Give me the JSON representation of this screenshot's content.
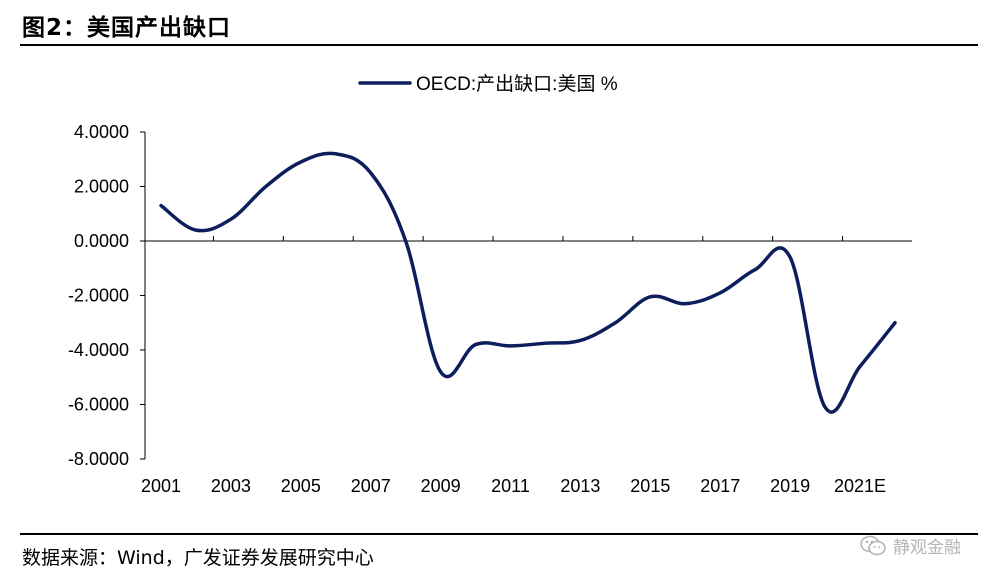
{
  "header": {
    "title": "图2：美国产出缺口"
  },
  "footer": {
    "source": "数据来源：Wind，广发证券发展研究中心",
    "watermark": "静观金融"
  },
  "colors": {
    "line": "#0c1f5c",
    "axis": "#000000"
  },
  "chart_data": {
    "type": "line",
    "title": "",
    "xlabel": "",
    "ylabel": "",
    "legend": {
      "position": "top-center",
      "entries": [
        "OECD:产出缺口:美国 %"
      ]
    },
    "ylim": [
      -8,
      4
    ],
    "yticks": [
      4,
      2,
      0,
      -2,
      -4,
      -6,
      -8
    ],
    "ytick_labels": [
      "4.0000",
      "2.0000",
      "0.0000",
      "-2.0000",
      "-4.0000",
      "-6.0000",
      "-8.0000"
    ],
    "xtick_labels": [
      "2001",
      "2003",
      "2005",
      "2007",
      "2009",
      "2011",
      "2013",
      "2015",
      "2017",
      "2019",
      "2021E"
    ],
    "x": [
      "2001",
      "2002",
      "2003",
      "2004",
      "2005",
      "2006",
      "2007",
      "2008",
      "2009",
      "2010",
      "2011",
      "2012",
      "2013",
      "2014",
      "2015",
      "2016",
      "2017",
      "2018",
      "2019",
      "2020",
      "2021E",
      "2022E"
    ],
    "series": [
      {
        "name": "OECD:产出缺口:美国 %",
        "values": [
          1.3,
          0.4,
          0.8,
          2.0,
          2.9,
          3.2,
          2.5,
          0.0,
          -4.8,
          -3.8,
          -3.85,
          -3.75,
          -3.65,
          -3.0,
          -2.05,
          -2.3,
          -1.9,
          -1.05,
          -0.6,
          -6.1,
          -4.6,
          -3.0
        ]
      }
    ]
  }
}
